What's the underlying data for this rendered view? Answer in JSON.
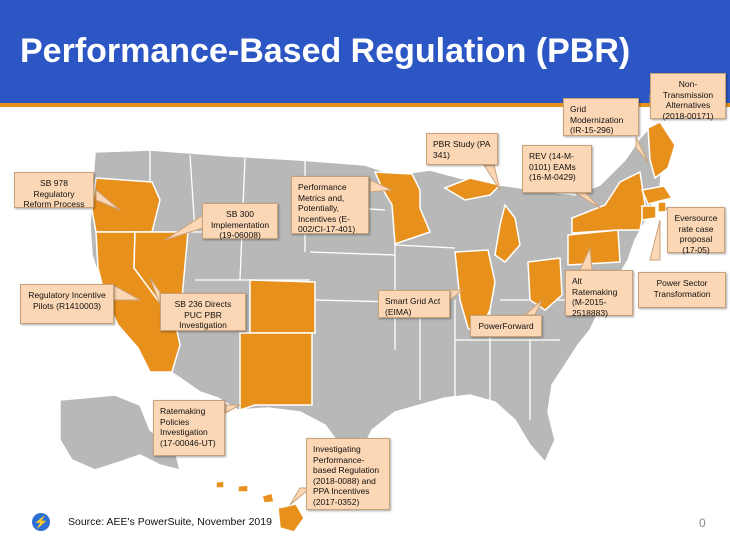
{
  "title": "Performance-Based Regulation (PBR)",
  "colors": {
    "header_blue": "#2c56c4",
    "accent_orange": "#e8901c",
    "state_gray": "#b8b8b8",
    "callout_fill": "#fbd7b5"
  },
  "callouts": {
    "ca_sb978": "SB 978 Regulatory Reform Process",
    "ca_pilots": "Regulatory Incentive Pilots (R1410003)",
    "nv_sb300": "SB 300 Implementation (19-06008)",
    "nv_sb236": "SB 236 Directs PUC PBR Investigation",
    "mn_metrics": "Performance Metrics and, Potentially, Incentives (E-002/CI-17-401)",
    "mi_pbr": "PBR Study (PA 341)",
    "ny_rev": "REV (14-M-0101) EAMs (16-M-0429)",
    "ma_grid": "Grid Modernization (IR-15-296)",
    "me_ntas": "Non-Transmission Alternatives (2018-00171)",
    "ri_eversource": "Eversource rate case proposal (17-05)",
    "ri_power": "Power Sector Transformation",
    "pa_alt": "Alt Ratemaking (M-2015-2518883)",
    "il_sga": "Smart Grid Act (EIMA)",
    "oh_powerforward": "PowerForward",
    "nm_ratemaking": "Ratemaking Policies Investigation (17-00046-UT)",
    "hi_pbr": "Investigating Performance-based Regulation (2018-0088) and PPA Incentives (2017-0352)"
  },
  "footer": {
    "logo_icon": "lightning-bolt-icon",
    "source": "Source: AEE's PowerSuite, November 2019",
    "page_number": "0"
  }
}
